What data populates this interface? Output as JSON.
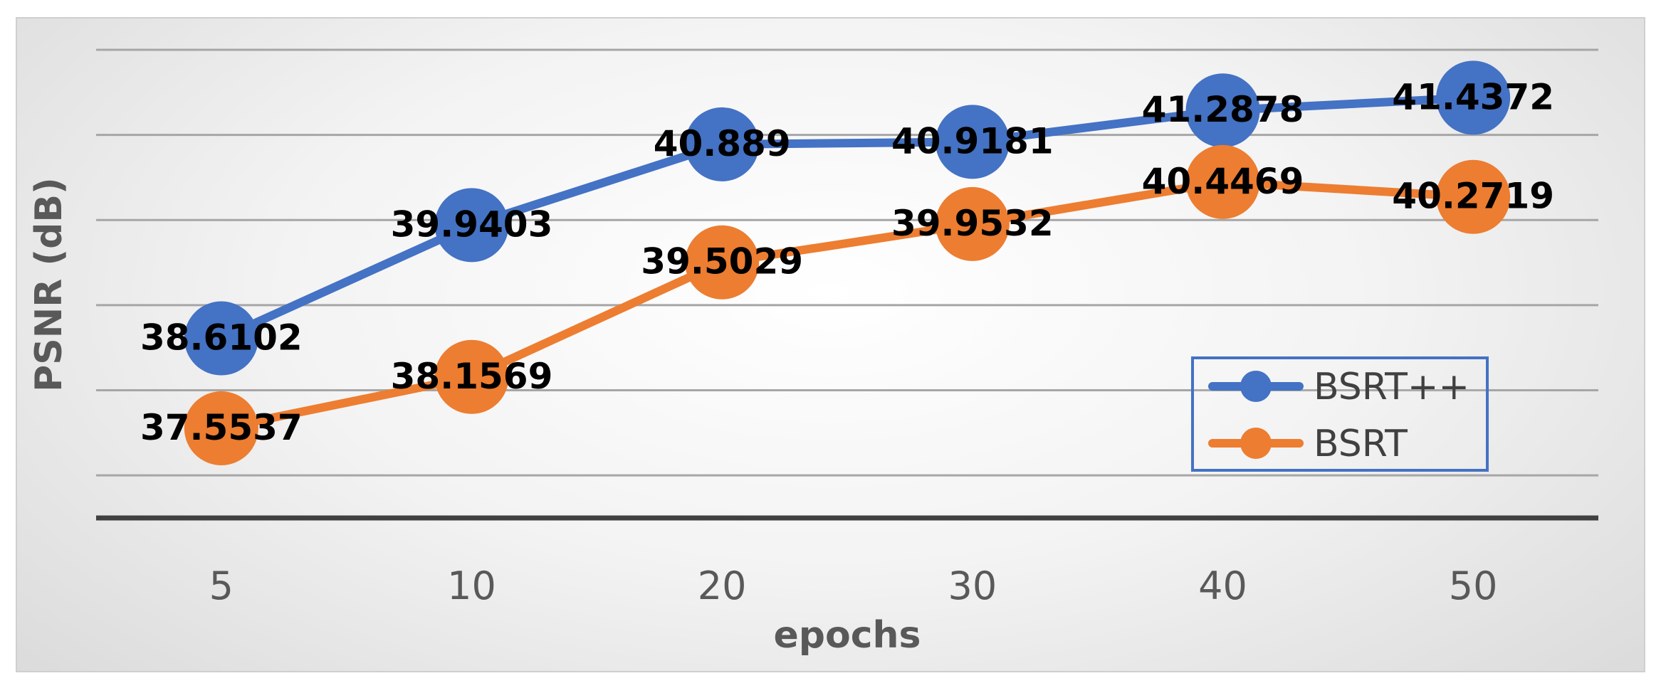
{
  "chart_data": {
    "type": "line",
    "title": "",
    "xlabel": "epochs",
    "ylabel": "PSNR (dB)",
    "categories": [
      "5",
      "10",
      "20",
      "30",
      "40",
      "50"
    ],
    "ylim": [
      36.5,
      42.0
    ],
    "grid": true,
    "legend_position": "bottom-right",
    "series": [
      {
        "name": "BSRT++",
        "color": "#4472c4",
        "values": [
          38.6102,
          39.9403,
          40.889,
          40.9181,
          41.2878,
          41.4372
        ],
        "labels": [
          "38.6102",
          "39.9403",
          "40.889",
          "40.9181",
          "41.2878",
          "41.4372"
        ]
      },
      {
        "name": "BSRT",
        "color": "#ed7d31",
        "values": [
          37.5537,
          38.1569,
          39.5029,
          39.9532,
          40.4469,
          40.2719
        ],
        "labels": [
          "37.5537",
          "38.1569",
          "39.5029",
          "39.9532",
          "40.4469",
          "40.2719"
        ]
      }
    ]
  }
}
